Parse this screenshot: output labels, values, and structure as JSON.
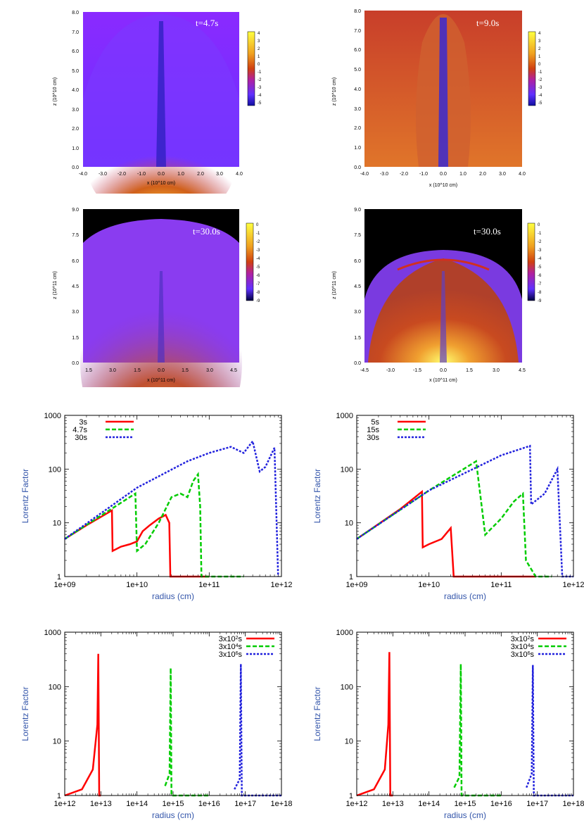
{
  "colors": {
    "red": "#ff0000",
    "green": "#00cc00",
    "blue": "#2222dd",
    "axis_text_blue": "#3355aa",
    "axis_black": "#000000"
  },
  "maps": [
    {
      "label": "t=4.7s",
      "xlabel": "x (10^10 cm)",
      "ylabel": "z (10^10 cm)",
      "xticks": [
        "-4.0",
        "-3.0",
        "-2.0",
        "-1.0",
        "0.0",
        "1.0",
        "2.0",
        "3.0",
        "4.0"
      ],
      "yticks": [
        "0.0",
        "1.0",
        "2.0",
        "3.0",
        "4.0",
        "5.0",
        "6.0",
        "7.0",
        "8.0"
      ],
      "colorbar_ticks": [
        "4",
        "3",
        "2",
        "1",
        "0",
        "-1",
        "-2",
        "-3",
        "-4",
        "-5"
      ],
      "background": "blue-purple"
    },
    {
      "label": "t=9.0s",
      "xlabel": "x (10^10 cm)",
      "ylabel": "z (10^10 cm)",
      "xticks": [
        "-4.0",
        "-3.0",
        "-2.0",
        "-1.0",
        "0.0",
        "1.0",
        "2.0",
        "3.0",
        "4.0"
      ],
      "yticks": [
        "0.0",
        "1.0",
        "2.0",
        "3.0",
        "4.0",
        "5.0",
        "6.0",
        "7.0",
        "8.0"
      ],
      "colorbar_ticks": [
        "4",
        "3",
        "2",
        "1",
        "0",
        "-1",
        "-2",
        "-3",
        "-4",
        "-5"
      ],
      "background": "orange"
    },
    {
      "label": "t=30.0s",
      "xlabel": "x (10^11 cm)",
      "ylabel": "z (10^11 cm)",
      "xticks": [
        "1.5",
        "3.0",
        "1.5",
        "0.0",
        "1.5",
        "3.0",
        "4.5"
      ],
      "yticks": [
        "0.0",
        "1.5",
        "3.0",
        "4.5",
        "6.0",
        "7.5",
        "9.0"
      ],
      "colorbar_ticks": [
        "0",
        "-1",
        "-2",
        "-3",
        "-4",
        "-5",
        "-6",
        "-7",
        "-8",
        "-9"
      ],
      "background": "purple"
    },
    {
      "label": "t=30.0s",
      "xlabel": "x (10^11 cm)",
      "ylabel": "z (10^11 cm)",
      "xticks": [
        "-4.5",
        "-3.0",
        "-1.5",
        "0.0",
        "1.5",
        "3.0",
        "4.5"
      ],
      "yticks": [
        "0.0",
        "1.5",
        "3.0",
        "4.5",
        "6.0",
        "7.5",
        "9.0"
      ],
      "colorbar_ticks": [
        "0",
        "-1",
        "-2",
        "-3",
        "-4",
        "-5",
        "-6",
        "-7",
        "-8",
        "-9"
      ],
      "background": "orange"
    }
  ],
  "chart_data": [
    {
      "type": "line",
      "ylabel": "Lorentz Factor",
      "xlabel": "radius (cm)",
      "xscale": "log",
      "yscale": "log",
      "xlim": [
        1000000000.0,
        1000000000000.0
      ],
      "ylim": [
        1,
        1000
      ],
      "xtick_labels": [
        "1e+09",
        "1e+10",
        "1e+11",
        "1e+12"
      ],
      "ytick_labels": [
        "1",
        "10",
        "100",
        "1000"
      ],
      "legend_position": "top-left",
      "series": [
        {
          "name": "3s",
          "color": "#ff0000",
          "dash": "solid",
          "points": [
            [
              1000000000.0,
              5
            ],
            [
              2000000000.0,
              9
            ],
            [
              4500000000.0,
              17
            ],
            [
              4600000000.0,
              3
            ],
            [
              6000000000.0,
              3.6
            ],
            [
              8000000000.0,
              4
            ],
            [
              10000000000.0,
              4.5
            ],
            [
              12000000000.0,
              7
            ],
            [
              15000000000.0,
              9
            ],
            [
              20000000000.0,
              12
            ],
            [
              25000000000.0,
              14
            ],
            [
              28000000000.0,
              10
            ],
            [
              29000000000.0,
              1
            ],
            [
              100000000000.0,
              1
            ]
          ]
        },
        {
          "name": "4.7s",
          "color": "#00cc00",
          "dash": "dashed",
          "points": [
            [
              1000000000.0,
              5
            ],
            [
              3000000000.0,
              13
            ],
            [
              9500000000.0,
              35
            ],
            [
              10000000000.0,
              3
            ],
            [
              13000000000.0,
              4
            ],
            [
              20000000000.0,
              10
            ],
            [
              30000000000.0,
              30
            ],
            [
              40000000000.0,
              35
            ],
            [
              50000000000.0,
              30
            ],
            [
              60000000000.0,
              60
            ],
            [
              70000000000.0,
              80
            ],
            [
              75000000000.0,
              20
            ],
            [
              78000000000.0,
              1
            ],
            [
              300000000000.0,
              1
            ]
          ]
        },
        {
          "name": "30s",
          "color": "#2222dd",
          "dash": "dotted",
          "points": [
            [
              1000000000.0,
              5
            ],
            [
              10000000000.0,
              45
            ],
            [
              50000000000.0,
              140
            ],
            [
              100000000000.0,
              200
            ],
            [
              200000000000.0,
              260
            ],
            [
              300000000000.0,
              200
            ],
            [
              400000000000.0,
              330
            ],
            [
              500000000000.0,
              90
            ],
            [
              600000000000.0,
              110
            ],
            [
              800000000000.0,
              250
            ],
            [
              900000000000.0,
              1
            ]
          ]
        }
      ]
    },
    {
      "type": "line",
      "ylabel": "Lorentz Factor",
      "xlabel": "radius (cm)",
      "xscale": "log",
      "yscale": "log",
      "xlim": [
        1000000000.0,
        1000000000000.0
      ],
      "ylim": [
        1,
        1000
      ],
      "xtick_labels": [
        "1e+09",
        "1e+10",
        "1e+11",
        "1e+12"
      ],
      "ytick_labels": [
        "1",
        "10",
        "100",
        "1000"
      ],
      "legend_position": "top-left",
      "series": [
        {
          "name": "5s",
          "color": "#ff0000",
          "dash": "solid",
          "points": [
            [
              1000000000.0,
              5
            ],
            [
              4000000000.0,
              18
            ],
            [
              8000000000.0,
              38
            ],
            [
              8200000000.0,
              3.5
            ],
            [
              10000000000.0,
              4
            ],
            [
              15000000000.0,
              5
            ],
            [
              20000000000.0,
              8
            ],
            [
              22000000000.0,
              1
            ],
            [
              300000000000.0,
              1
            ]
          ]
        },
        {
          "name": "15s",
          "color": "#00cc00",
          "dash": "dashed",
          "points": [
            [
              1000000000.0,
              5
            ],
            [
              10000000000.0,
              40
            ],
            [
              45000000000.0,
              140
            ],
            [
              60000000000.0,
              6
            ],
            [
              100000000000.0,
              12
            ],
            [
              150000000000.0,
              25
            ],
            [
              200000000000.0,
              35
            ],
            [
              220000000000.0,
              2
            ],
            [
              300000000000.0,
              1
            ],
            [
              500000000000.0,
              1
            ]
          ]
        },
        {
          "name": "30s",
          "color": "#2222dd",
          "dash": "dotted",
          "points": [
            [
              1000000000.0,
              5
            ],
            [
              10000000000.0,
              40
            ],
            [
              100000000000.0,
              180
            ],
            [
              250000000000.0,
              270
            ],
            [
              260000000000.0,
              22
            ],
            [
              400000000000.0,
              35
            ],
            [
              600000000000.0,
              100
            ],
            [
              700000000000.0,
              1
            ],
            [
              1000000000000.0,
              1
            ]
          ]
        }
      ]
    },
    {
      "type": "line",
      "ylabel": "Lorentz Factor",
      "xlabel": "radius (cm)",
      "xscale": "log",
      "yscale": "log",
      "xlim": [
        1000000000000.0,
        1e+18
      ],
      "ylim": [
        1,
        1000
      ],
      "xtick_labels": [
        "1e+12",
        "1e+13",
        "1e+14",
        "1e+15",
        "1e+16",
        "1e+17",
        "1e+18"
      ],
      "ytick_labels": [
        "1",
        "10",
        "100",
        "1000"
      ],
      "legend_position": "top-right",
      "series": [
        {
          "name": "3x10^2s",
          "color": "#ff0000",
          "dash": "solid",
          "points": [
            [
              1000000000000.0,
              1
            ],
            [
              3000000000000.0,
              1.3
            ],
            [
              6000000000000.0,
              3
            ],
            [
              8000000000000.0,
              20
            ],
            [
              8500000000000.0,
              400
            ],
            [
              9000000000000.0,
              1
            ],
            [
              10000000000000.0,
              1
            ]
          ]
        },
        {
          "name": "3x10^4s",
          "color": "#00cc00",
          "dash": "dashed",
          "points": [
            [
              600000000000000.0,
              1.5
            ],
            [
              800000000000000.0,
              2.5
            ],
            [
              860000000000000.0,
              220
            ],
            [
              900000000000000.0,
              1
            ],
            [
              1e+16,
              1
            ]
          ]
        },
        {
          "name": "3x10^6s",
          "color": "#2222dd",
          "dash": "dotted",
          "points": [
            [
              5e+16,
              1.3
            ],
            [
              7e+16,
              2
            ],
            [
              7.5e+16,
              260
            ],
            [
              8e+16,
              1
            ],
            [
              1e+18,
              1
            ]
          ]
        }
      ]
    },
    {
      "type": "line",
      "ylabel": "Lorentz Factor",
      "xlabel": "radius (cm)",
      "xscale": "log",
      "yscale": "log",
      "xlim": [
        1000000000000.0,
        1e+18
      ],
      "ylim": [
        1,
        1000
      ],
      "xtick_labels": [
        "1e+12",
        "1e+13",
        "1e+14",
        "1e+15",
        "1e+16",
        "1e+17",
        "1e+18"
      ],
      "ytick_labels": [
        "1",
        "10",
        "100",
        "1000"
      ],
      "legend_position": "top-right",
      "series": [
        {
          "name": "3x10^2s",
          "color": "#ff0000",
          "dash": "solid",
          "points": [
            [
              1000000000000.0,
              1
            ],
            [
              3000000000000.0,
              1.3
            ],
            [
              6000000000000.0,
              3
            ],
            [
              7500000000000.0,
              20
            ],
            [
              8000000000000.0,
              430
            ],
            [
              8500000000000.0,
              1
            ],
            [
              10000000000000.0,
              1
            ]
          ]
        },
        {
          "name": "3x10^4s",
          "color": "#00cc00",
          "dash": "dashed",
          "points": [
            [
              500000000000000.0,
              1.4
            ],
            [
              700000000000000.0,
              2.2
            ],
            [
              760000000000000.0,
              260
            ],
            [
              800000000000000.0,
              1
            ],
            [
              1e+16,
              1
            ]
          ]
        },
        {
          "name": "3x10^6s",
          "color": "#2222dd",
          "dash": "dotted",
          "points": [
            [
              5e+16,
              1.4
            ],
            [
              7e+16,
              2.5
            ],
            [
              7.5e+16,
              250
            ],
            [
              8e+16,
              1
            ],
            [
              1e+18,
              1
            ]
          ]
        }
      ]
    }
  ]
}
